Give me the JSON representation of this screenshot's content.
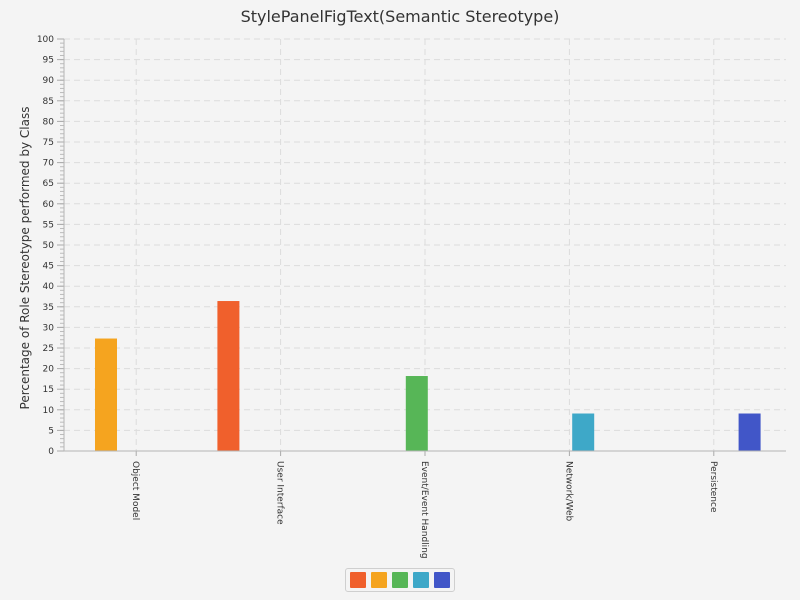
{
  "chart_data": {
    "type": "bar",
    "title": "StylePanelFigText(Semantic Stereotype)",
    "ylabel": "Percentage of Role Stereotype performed by Class",
    "xlabel": "",
    "categories": [
      "Object Model",
      "User Interface",
      "Event/Event Handling",
      "Network/Web",
      "Persistence"
    ],
    "series": [
      {
        "values": [
          0,
          36.4,
          0,
          0,
          0
        ],
        "color": "#f0602c"
      },
      {
        "values": [
          27.3,
          0,
          0,
          0,
          0
        ],
        "color": "#f5a41f"
      },
      {
        "values": [
          0,
          0,
          18.2,
          0,
          0
        ],
        "color": "#57b657"
      },
      {
        "values": [
          0,
          0,
          0,
          9.1,
          0
        ],
        "color": "#3ea8c8"
      },
      {
        "values": [
          0,
          0,
          0,
          0,
          9.1
        ],
        "color": "#4156c8"
      }
    ],
    "ylim": [
      0,
      100
    ],
    "y_ticks": [
      0,
      5,
      10,
      15,
      20,
      25,
      30,
      35,
      40,
      45,
      50,
      55,
      60,
      65,
      70,
      75,
      80,
      85,
      90,
      95,
      100
    ],
    "grid": true,
    "legend_position": "bottom-center"
  }
}
